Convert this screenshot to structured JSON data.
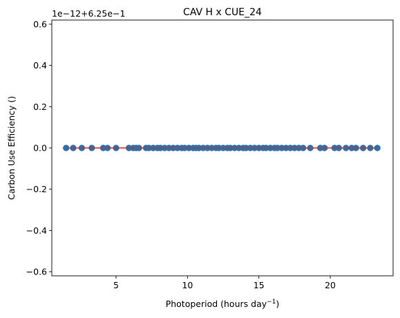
{
  "chart_data": {
    "type": "scatter",
    "title": "CAV H x CUE_24",
    "xlabel": "Photoperiod (hours day",
    "xlabel_superscript": "−1",
    "xlabel_suffix": ")",
    "ylabel": "Carbon Use Efficiency ()",
    "offset_label": "1e−12+6.25e−1",
    "xlim": [
      0.5,
      24.4
    ],
    "ylim": [
      -0.62,
      0.62
    ],
    "xticks": [
      5,
      10,
      15,
      20
    ],
    "xtick_labels": [
      "5",
      "10",
      "15",
      "20"
    ],
    "yticks": [
      -0.6,
      -0.4,
      -0.2,
      0.0,
      0.2,
      0.4,
      0.6
    ],
    "ytick_labels": [
      "−0.6",
      "−0.4",
      "−0.2",
      "0.0",
      "0.2",
      "0.4",
      "0.6"
    ],
    "grid": false,
    "legend": "none",
    "point_color": "#1f77b4",
    "fit_line_color": "#d62728",
    "fit_line": {
      "x": [
        1.5,
        23.3
      ],
      "y": [
        0.0,
        0.0
      ]
    },
    "x": [
      1.5,
      2.0,
      2.6,
      3.3,
      4.1,
      4.4,
      5.0,
      5.9,
      6.2,
      6.4,
      6.6,
      7.1,
      7.3,
      7.6,
      7.9,
      8.1,
      8.4,
      8.7,
      9.0,
      9.3,
      9.6,
      9.8,
      10.1,
      10.4,
      10.6,
      10.8,
      11.1,
      11.4,
      11.7,
      12.0,
      12.2,
      12.5,
      12.8,
      13.0,
      13.3,
      13.6,
      13.9,
      14.1,
      14.4,
      14.7,
      15.0,
      15.3,
      15.5,
      15.8,
      16.1,
      16.3,
      16.6,
      16.9,
      17.2,
      17.5,
      17.8,
      18.1,
      18.6,
      19.3,
      19.6,
      20.3,
      20.6,
      21.1,
      21.5,
      21.8,
      22.3,
      22.8,
      23.3
    ],
    "y": [
      0.0,
      0.0,
      0.0,
      0.0,
      0.0,
      0.0,
      0.0,
      0.0,
      0.0,
      0.0,
      0.0,
      0.0,
      0.0,
      0.0,
      0.0,
      0.0,
      0.0,
      0.0,
      0.0,
      0.0,
      0.0,
      0.0,
      0.0,
      0.0,
      0.0,
      0.0,
      0.0,
      0.0,
      0.0,
      0.0,
      0.0,
      0.0,
      0.0,
      0.0,
      0.0,
      0.0,
      0.0,
      0.0,
      0.0,
      0.0,
      0.0,
      0.0,
      0.0,
      0.0,
      0.0,
      0.0,
      0.0,
      0.0,
      0.0,
      0.0,
      0.0,
      0.0,
      0.0,
      0.0,
      0.0,
      0.0,
      0.0,
      0.0,
      0.0,
      0.0,
      0.0,
      0.0,
      0.0
    ]
  }
}
